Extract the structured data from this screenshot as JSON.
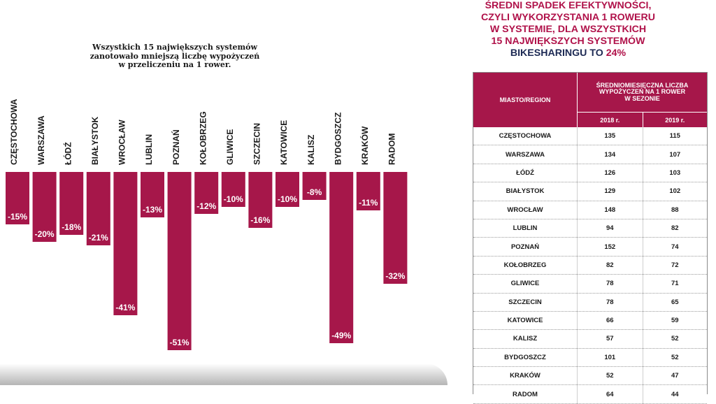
{
  "caption": {
    "line1": "Wszystkich 15 największych systemów",
    "line2": "zanotowało mniejszą liczbę wypożyczeń",
    "line3": "w przeliczeniu na 1 rower."
  },
  "heading": {
    "line1": "ŚREDNI SPADEK EFEKTYWNOŚCI,",
    "line2": "CZYLI WYKORZYSTANIA 1 ROWERU",
    "line3": "W SYSTEMIE, DLA WSZYSTKICH",
    "line4": "15 NAJWIĘKSZYCH SYSTEMÓW",
    "line5_a": "BIKESHARINGU TO",
    "line5_b": "24%"
  },
  "colors": {
    "bar": "#a6174a",
    "heading_red": "#b0124a",
    "heading_dark": "#1d2a54"
  },
  "chart_data": {
    "type": "bar",
    "categories": [
      "CZĘSTOCHOWA",
      "WARSZAWA",
      "ŁÓDŹ",
      "BIAŁYSTOK",
      "WROCŁAW",
      "LUBLIN",
      "POZNAŃ",
      "KOŁOBRZEG",
      "GLIWICE",
      "SZCZECIN",
      "KATOWICE",
      "KALISZ",
      "BYDGOSZCZ",
      "KRAKÓW",
      "RADOM"
    ],
    "values": [
      -15,
      -20,
      -18,
      -21,
      -41,
      -13,
      -51,
      -12,
      -10,
      -16,
      -10,
      -8,
      -49,
      -11,
      -32
    ],
    "data_labels": [
      "-15%",
      "-20%",
      "-18%",
      "-21%",
      "-41%",
      "-13%",
      "-51%",
      "-12%",
      "-10%",
      "-16%",
      "-10%",
      "-8%",
      "-49%",
      "-11%",
      "-32%"
    ],
    "ylim": [
      -51,
      0
    ]
  },
  "table": {
    "col_region": "MIASTO/REGION",
    "col_span_l1": "ŚREDNIOMIESIĘCZNA LICZBA",
    "col_span_l2": "WYPOŻYCZEŃ NA 1 ROWER",
    "col_span_l3": "W SEZONIE",
    "col_2018": "2018 r.",
    "col_2019": "2019 r.",
    "rows": [
      {
        "city": "CZĘSTOCHOWA",
        "y2018": "135",
        "y2019": "115"
      },
      {
        "city": "WARSZAWA",
        "y2018": "134",
        "y2019": "107"
      },
      {
        "city": "ŁÓDŹ",
        "y2018": "126",
        "y2019": "103"
      },
      {
        "city": "BIAŁYSTOK",
        "y2018": "129",
        "y2019": "102"
      },
      {
        "city": "WROCŁAW",
        "y2018": "148",
        "y2019": "88"
      },
      {
        "city": "LUBLIN",
        "y2018": "94",
        "y2019": "82"
      },
      {
        "city": "POZNAŃ",
        "y2018": "152",
        "y2019": "74"
      },
      {
        "city": "KOŁOBRZEG",
        "y2018": "82",
        "y2019": "72"
      },
      {
        "city": "GLIWICE",
        "y2018": "78",
        "y2019": "71"
      },
      {
        "city": "SZCZECIN",
        "y2018": "78",
        "y2019": "65"
      },
      {
        "city": "KATOWICE",
        "y2018": "66",
        "y2019": "59"
      },
      {
        "city": "KALISZ",
        "y2018": "57",
        "y2019": "52"
      },
      {
        "city": "BYDGOSZCZ",
        "y2018": "101",
        "y2019": "52"
      },
      {
        "city": "KRAKÓW",
        "y2018": "52",
        "y2019": "47"
      },
      {
        "city": "RADOM",
        "y2018": "64",
        "y2019": "44"
      }
    ]
  }
}
